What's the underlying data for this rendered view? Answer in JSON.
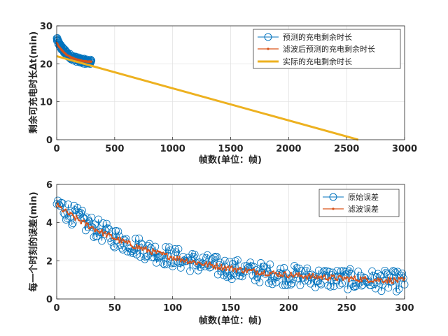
{
  "colors": {
    "blue": "#0072BD",
    "orange": "#D95319",
    "yellow": "#EDB120",
    "grid": "#dfdfdf",
    "axes": "#262626"
  },
  "chart_data": [
    {
      "type": "line",
      "title": "",
      "xlabel": "帧数(单位：帧)",
      "ylabel": "剩余可充电时长Δt(min)",
      "xlim": [
        0,
        3000
      ],
      "ylim": [
        0,
        30
      ],
      "xticks": [
        "0",
        "500",
        "1000",
        "1500",
        "2000",
        "2500",
        "3000"
      ],
      "yticks": [
        "0",
        "10",
        "20",
        "30"
      ],
      "grid": true,
      "legend_location": "top-right",
      "series": [
        {
          "name": "预测的充电剩余时长",
          "style": "markers",
          "x_range": [
            0,
            300
          ],
          "y_start": 26.5,
          "y_end": 20.2,
          "noise": 0.7
        },
        {
          "name": "滤波后预测的充电剩余时长",
          "style": "line-dots",
          "x_range": [
            0,
            300
          ],
          "y_start": 25.6,
          "y_end": 20.3,
          "noise": 0.15
        },
        {
          "name": "实际的充电剩余时长",
          "style": "line",
          "x": [
            0,
            2600
          ],
          "y": [
            22.0,
            0
          ]
        }
      ]
    },
    {
      "type": "line",
      "title": "",
      "xlabel": "帧数(单位：帧)",
      "ylabel": "每一个时刻的误差(min)",
      "xlim": [
        0,
        300
      ],
      "ylim": [
        0,
        6
      ],
      "xticks": [
        "0",
        "50",
        "100",
        "150",
        "200",
        "250",
        "300"
      ],
      "yticks": [
        "0",
        "2",
        "4",
        "6"
      ],
      "grid": true,
      "legend_location": "top-right",
      "series": [
        {
          "name": "原始误差",
          "style": "markers",
          "x_range": [
            0,
            300
          ],
          "y_start": 5.0,
          "y_end": 0.75,
          "noise": 0.55
        },
        {
          "name": "滤波误差",
          "style": "line-dots",
          "x_range": [
            0,
            300
          ],
          "y_start": 4.9,
          "y_end": 0.8,
          "noise": 0.15
        }
      ]
    }
  ]
}
